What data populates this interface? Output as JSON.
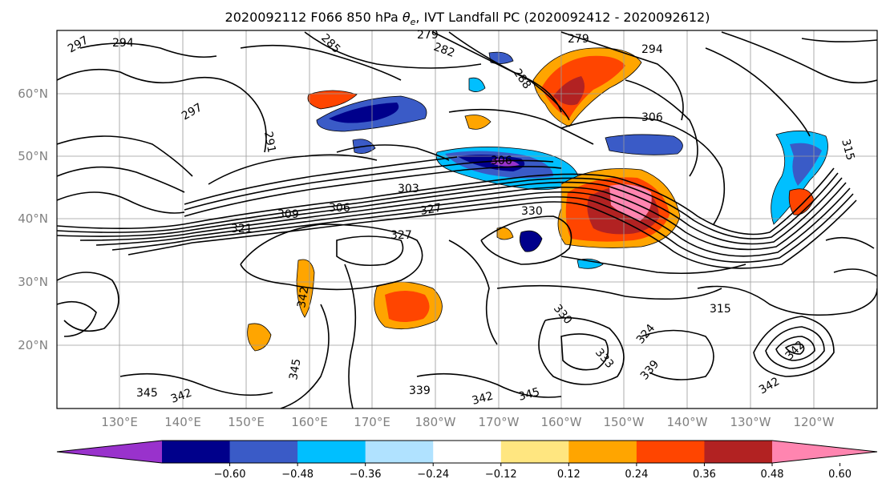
{
  "title": {
    "prefix": "2020092112 F066 850 hPa ",
    "theta_symbol": "θ",
    "theta_sub": "e",
    "suffix": ", IVT Landfall PC (2020092412 - 2020092612)"
  },
  "map": {
    "lat_ticks": [
      "60°N",
      "50°N",
      "40°N",
      "30°N",
      "20°N"
    ],
    "lon_ticks": [
      "130°E",
      "140°E",
      "150°E",
      "160°E",
      "170°E",
      "180°W",
      "170°W",
      "160°W",
      "150°W",
      "140°W",
      "130°W",
      "120°W"
    ],
    "contour_interval_labels": [
      "297",
      "294",
      "285",
      "279",
      "282",
      "279",
      "294",
      "288",
      "297",
      "291",
      "306",
      "306",
      "309",
      "303",
      "306",
      "330",
      "327",
      "327",
      "315",
      "321",
      "342",
      "315",
      "324",
      "333",
      "330",
      "339",
      "342",
      "342",
      "345",
      "345",
      "342",
      "339",
      "342",
      "345"
    ]
  },
  "colorbar": {
    "levels": [
      -0.72,
      -0.6,
      -0.48,
      -0.36,
      -0.24,
      -0.12,
      0.12,
      0.24,
      0.36,
      0.48,
      0.6,
      0.72
    ],
    "tick_labels": [
      "−0.60",
      "−0.48",
      "−0.36",
      "−0.24",
      "−0.12",
      "0.12",
      "0.24",
      "0.36",
      "0.48",
      "0.60"
    ],
    "colors": [
      "#9932cc",
      "#00008b",
      "#3a5bc7",
      "#00bfff",
      "#b0e2ff",
      "#ffffff",
      "#ffe680",
      "#ffa500",
      "#ff4500",
      "#b22222",
      "#ff85b0"
    ],
    "extend": "both"
  }
}
